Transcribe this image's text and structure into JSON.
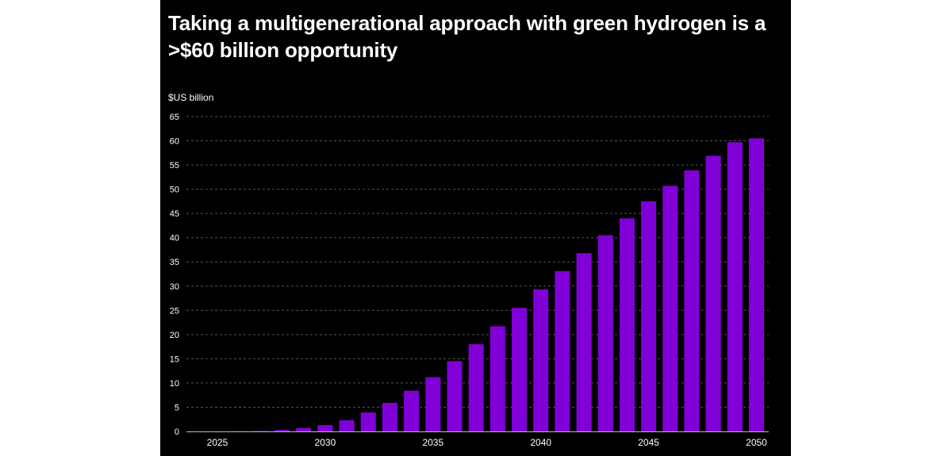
{
  "chart_data": {
    "type": "bar",
    "title": "Taking a multigenerational approach with green hydrogen is a >$60 billion opportunity",
    "ylabel": "$US billion",
    "xlabel": "",
    "ylim": [
      0,
      65
    ],
    "yticks": [
      0,
      5,
      10,
      15,
      20,
      25,
      30,
      35,
      40,
      45,
      50,
      55,
      60,
      65
    ],
    "xtick_labels": [
      "2025",
      "2030",
      "2035",
      "2040",
      "2045",
      "2050"
    ],
    "categories": [
      "2025",
      "2026",
      "2027",
      "2028",
      "2029",
      "2030",
      "2031",
      "2032",
      "2033",
      "2034",
      "2035",
      "2036",
      "2037",
      "2038",
      "2039",
      "2040",
      "2041",
      "2042",
      "2043",
      "2044",
      "2045",
      "2046",
      "2047",
      "2048",
      "2049",
      "2050"
    ],
    "values": [
      0,
      0.05,
      0.1,
      0.3,
      0.7,
      1.3,
      2.3,
      3.9,
      5.9,
      8.4,
      11.2,
      14.5,
      18.0,
      21.7,
      25.5,
      29.3,
      33.1,
      36.8,
      40.5,
      44.0,
      47.5,
      50.7,
      53.9,
      56.9,
      59.7,
      60.5
    ],
    "grid": true,
    "colors": {
      "bar": "#8200d8",
      "background": "#000000",
      "text": "#ffffff",
      "grid": "#555555"
    }
  }
}
